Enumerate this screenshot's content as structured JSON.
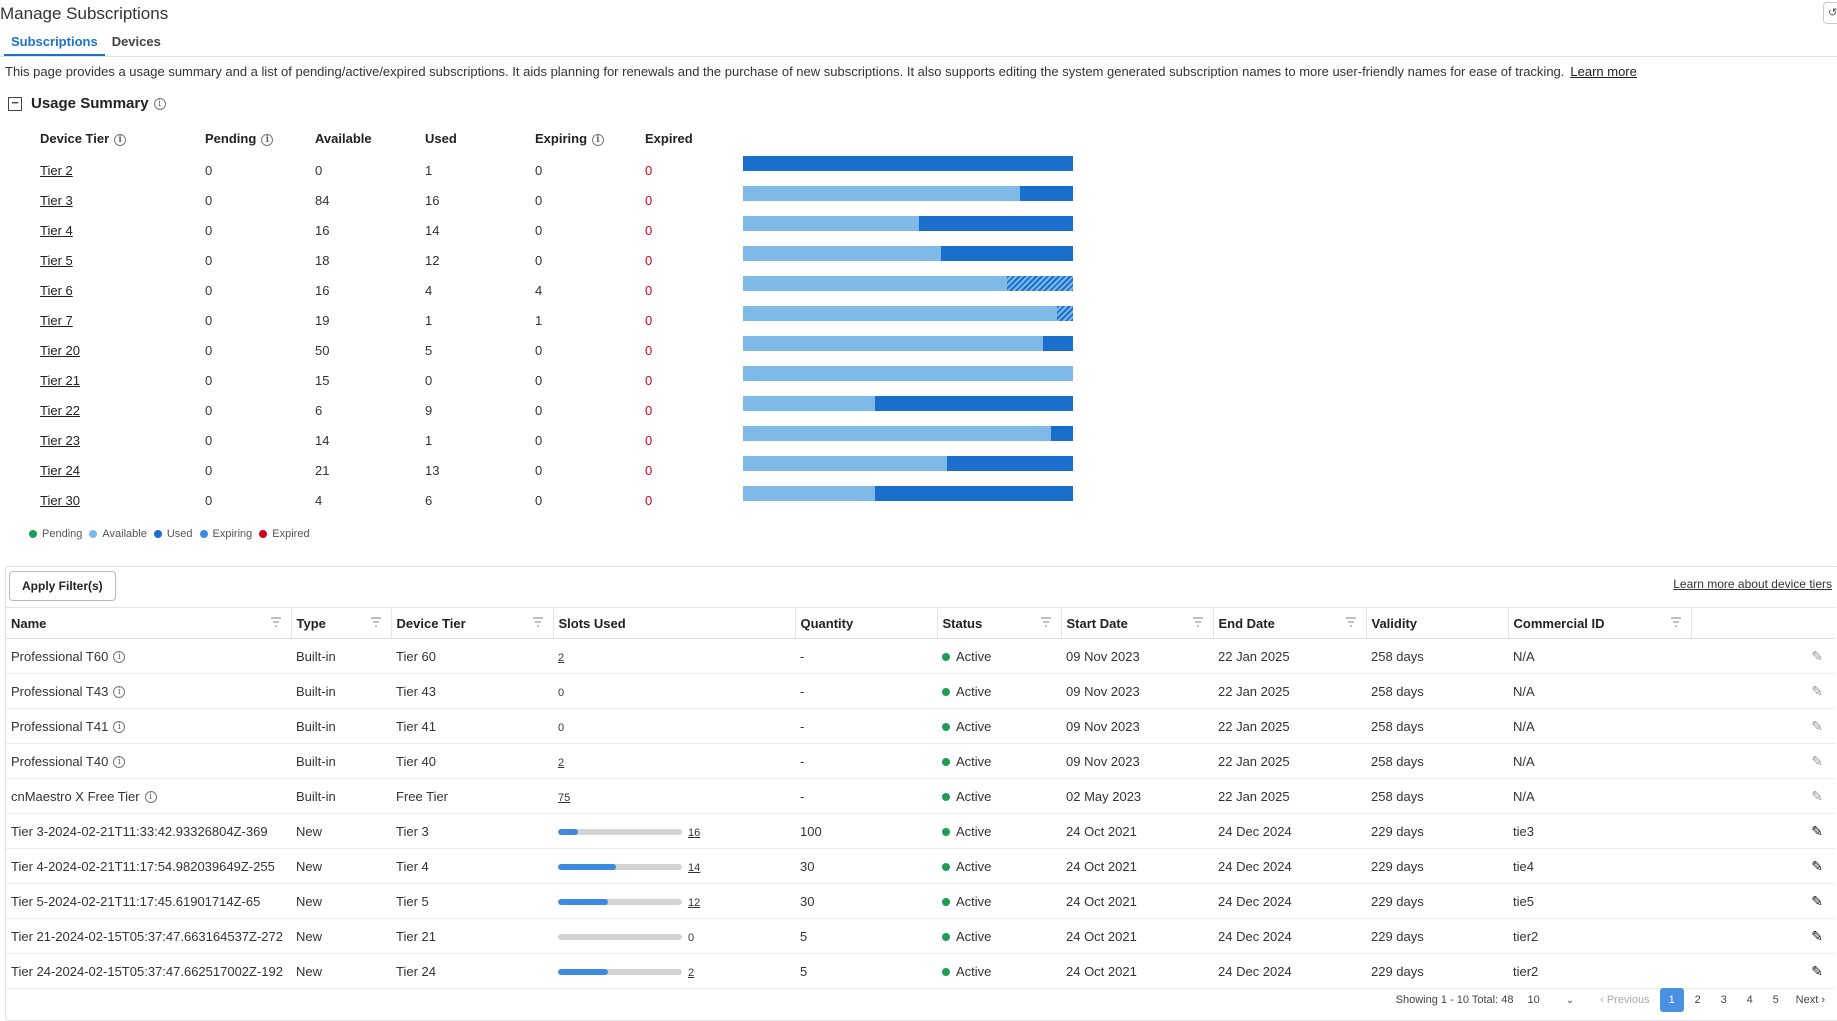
{
  "page": {
    "title": "Manage Subscriptions",
    "refresh_label": "↺"
  },
  "tabs": [
    {
      "label": "Subscriptions",
      "active": true
    },
    {
      "label": "Devices",
      "active": false
    }
  ],
  "description": "This page provides a usage summary and a list of pending/active/expired subscriptions. It aids planning for renewals and the purchase of new subscriptions. It also supports editing the system generated subscription names to more user-friendly names for ease of tracking.",
  "learn_more": "Learn more",
  "usage_summary": {
    "title": "Usage Summary",
    "collapse_symbol": "−",
    "columns": [
      "Device Tier",
      "Pending",
      "Available",
      "Used",
      "Expiring",
      "Expired"
    ],
    "rows": [
      {
        "tier": "Tier 2",
        "pending": "0",
        "available": "0",
        "used": "1",
        "expiring": "0",
        "expired": "0"
      },
      {
        "tier": "Tier 3",
        "pending": "0",
        "available": "84",
        "used": "16",
        "expiring": "0",
        "expired": "0"
      },
      {
        "tier": "Tier 4",
        "pending": "0",
        "available": "16",
        "used": "14",
        "expiring": "0",
        "expired": "0"
      },
      {
        "tier": "Tier 5",
        "pending": "0",
        "available": "18",
        "used": "12",
        "expiring": "0",
        "expired": "0"
      },
      {
        "tier": "Tier 6",
        "pending": "0",
        "available": "16",
        "used": "4",
        "expiring": "4",
        "expired": "0"
      },
      {
        "tier": "Tier 7",
        "pending": "0",
        "available": "19",
        "used": "1",
        "expiring": "1",
        "expired": "0"
      },
      {
        "tier": "Tier 20",
        "pending": "0",
        "available": "50",
        "used": "5",
        "expiring": "0",
        "expired": "0"
      },
      {
        "tier": "Tier 21",
        "pending": "0",
        "available": "15",
        "used": "0",
        "expiring": "0",
        "expired": "0"
      },
      {
        "tier": "Tier 22",
        "pending": "0",
        "available": "6",
        "used": "9",
        "expiring": "0",
        "expired": "0"
      },
      {
        "tier": "Tier 23",
        "pending": "0",
        "available": "14",
        "used": "1",
        "expiring": "0",
        "expired": "0"
      },
      {
        "tier": "Tier 24",
        "pending": "0",
        "available": "21",
        "used": "13",
        "expiring": "0",
        "expired": "0"
      },
      {
        "tier": "Tier 30",
        "pending": "0",
        "available": "4",
        "used": "6",
        "expiring": "0",
        "expired": "0"
      }
    ],
    "legend": [
      {
        "label": "Pending",
        "color": "#1f9d55"
      },
      {
        "label": "Available",
        "color": "#7fb9e8"
      },
      {
        "label": "Used",
        "color": "#1a6fcc"
      },
      {
        "label": "Expiring",
        "color": "#3d8be0"
      },
      {
        "label": "Expired",
        "color": "#d0021b"
      }
    ]
  },
  "table": {
    "apply_filters": "Apply Filter(s)",
    "learn_more_tiers": "Learn more about device tiers",
    "columns": [
      "Name",
      "Type",
      "Device Tier",
      "Slots Used",
      "Quantity",
      "Status",
      "Start Date",
      "End Date",
      "Validity",
      "Commercial ID"
    ],
    "rows": [
      {
        "name": "Professional T60",
        "info": true,
        "type": "Built-in",
        "tier": "Tier 60",
        "slots": "2",
        "slot_fraction": null,
        "quantity": "-",
        "status": "Active",
        "start": "09 Nov 2023",
        "end": "22 Jan 2025",
        "validity": "258 days",
        "commercial_id": "N/A",
        "editable": false
      },
      {
        "name": "Professional T43",
        "info": true,
        "type": "Built-in",
        "tier": "Tier 43",
        "slots": "0",
        "slot_fraction": null,
        "quantity": "-",
        "status": "Active",
        "start": "09 Nov 2023",
        "end": "22 Jan 2025",
        "validity": "258 days",
        "commercial_id": "N/A",
        "editable": false
      },
      {
        "name": "Professional T41",
        "info": true,
        "type": "Built-in",
        "tier": "Tier 41",
        "slots": "0",
        "slot_fraction": null,
        "quantity": "-",
        "status": "Active",
        "start": "09 Nov 2023",
        "end": "22 Jan 2025",
        "validity": "258 days",
        "commercial_id": "N/A",
        "editable": false
      },
      {
        "name": "Professional T40",
        "info": true,
        "type": "Built-in",
        "tier": "Tier 40",
        "slots": "2",
        "slot_fraction": null,
        "quantity": "-",
        "status": "Active",
        "start": "09 Nov 2023",
        "end": "22 Jan 2025",
        "validity": "258 days",
        "commercial_id": "N/A",
        "editable": false
      },
      {
        "name": "cnMaestro X Free Tier",
        "info": true,
        "type": "Built-in",
        "tier": "Free Tier",
        "slots": "75",
        "slot_fraction": null,
        "quantity": "-",
        "status": "Active",
        "start": "02 May 2023",
        "end": "22 Jan 2025",
        "validity": "258 days",
        "commercial_id": "N/A",
        "editable": false
      },
      {
        "name": "Tier 3-2024-02-21T11:33:42.93326804Z-369",
        "info": false,
        "type": "New",
        "tier": "Tier 3",
        "slots": "16",
        "slot_fraction": 0.16,
        "quantity": "100",
        "status": "Active",
        "start": "24 Oct 2021",
        "end": "24 Dec 2024",
        "validity": "229 days",
        "commercial_id": "tie3",
        "editable": true
      },
      {
        "name": "Tier 4-2024-02-21T11:17:54.982039649Z-255",
        "info": false,
        "type": "New",
        "tier": "Tier 4",
        "slots": "14",
        "slot_fraction": 0.47,
        "quantity": "30",
        "status": "Active",
        "start": "24 Oct 2021",
        "end": "24 Dec 2024",
        "validity": "229 days",
        "commercial_id": "tie4",
        "editable": true
      },
      {
        "name": "Tier 5-2024-02-21T11:17:45.61901714Z-65",
        "info": false,
        "type": "New",
        "tier": "Tier 5",
        "slots": "12",
        "slot_fraction": 0.4,
        "quantity": "30",
        "status": "Active",
        "start": "24 Oct 2021",
        "end": "24 Dec 2024",
        "validity": "229 days",
        "commercial_id": "tie5",
        "editable": true
      },
      {
        "name": "Tier 21-2024-02-15T05:37:47.663164537Z-272",
        "info": false,
        "type": "New",
        "tier": "Tier 21",
        "slots": "0",
        "slot_fraction": 0,
        "quantity": "5",
        "status": "Active",
        "start": "24 Oct 2021",
        "end": "24 Dec 2024",
        "validity": "229 days",
        "commercial_id": "tier2",
        "editable": true
      },
      {
        "name": "Tier 24-2024-02-15T05:37:47.662517002Z-192",
        "info": false,
        "type": "New",
        "tier": "Tier 24",
        "slots": "2",
        "slot_fraction": 0.4,
        "quantity": "5",
        "status": "Active",
        "start": "24 Oct 2021",
        "end": "24 Dec 2024",
        "validity": "229 days",
        "commercial_id": "tier2",
        "editable": true
      }
    ]
  },
  "pagination": {
    "showing": "Showing 1 - 10 Total: 48",
    "page_size": "10",
    "previous": "Previous",
    "next": "Next",
    "pages": [
      "1",
      "2",
      "3",
      "4",
      "5"
    ],
    "current_page": "1"
  }
}
